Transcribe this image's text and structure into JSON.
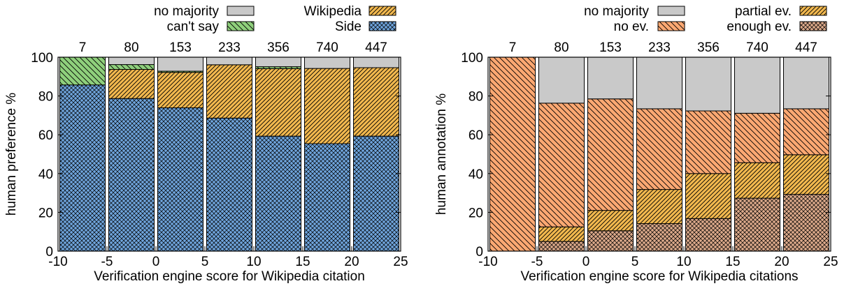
{
  "chart_data": [
    {
      "type": "bar",
      "stacked": true,
      "xlabel": "Verification engine score for Wikipedia citation",
      "ylabel": "human preference %",
      "xlim": [
        -10,
        25
      ],
      "ylim": [
        0,
        100
      ],
      "xticks": [
        "-10",
        "-5",
        "0",
        "5",
        "10",
        "15",
        "20",
        "25"
      ],
      "yticks": [
        "0",
        "20",
        "40",
        "60",
        "80",
        "100"
      ],
      "bins": [
        [
          -10,
          -5
        ],
        [
          -5,
          0
        ],
        [
          0,
          5
        ],
        [
          5,
          10
        ],
        [
          10,
          15
        ],
        [
          15,
          20
        ],
        [
          20,
          25
        ]
      ],
      "counts": [
        "7",
        "80",
        "153",
        "233",
        "356",
        "740",
        "447"
      ],
      "grid": false,
      "legend_position": "top",
      "series": [
        {
          "name": "Side",
          "color": "#6fa4dc",
          "pattern": "crosshatch",
          "values": [
            85.7,
            78.7,
            73.9,
            68.6,
            59.3,
            55.4,
            59.3
          ]
        },
        {
          "name": "Wikipedia",
          "color": "#f2b84e",
          "pattern": "hatch",
          "values": [
            0,
            15.0,
            18.3,
            27.5,
            34.8,
            38.8,
            35.3
          ]
        },
        {
          "name": "can't say",
          "color": "#8fd07c",
          "pattern": "hatch-reverse",
          "values": [
            14.3,
            2.5,
            0.6,
            0.0,
            1.0,
            0.0,
            0.0
          ]
        },
        {
          "name": "no majority",
          "color": "#c9c9c9",
          "pattern": "solid",
          "values": [
            0,
            3.8,
            7.2,
            3.9,
            4.9,
            5.8,
            5.4
          ]
        }
      ],
      "legend": [
        {
          "name": "no majority",
          "color": "#c9c9c9",
          "pattern": "solid"
        },
        {
          "name": "can't say",
          "color": "#8fd07c",
          "pattern": "hatch-reverse"
        },
        {
          "name": "Wikipedia",
          "color": "#f2b84e",
          "pattern": "hatch"
        },
        {
          "name": "Side",
          "color": "#6fa4dc",
          "pattern": "crosshatch"
        }
      ]
    },
    {
      "type": "bar",
      "stacked": true,
      "xlabel": "Verification engine score for Wikipedia citations",
      "ylabel": "human annotation %",
      "xlim": [
        -10,
        25
      ],
      "ylim": [
        0,
        100
      ],
      "xticks": [
        "-10",
        "-5",
        "0",
        "5",
        "10",
        "15",
        "20",
        "25"
      ],
      "yticks": [
        "0",
        "20",
        "40",
        "60",
        "80",
        "100"
      ],
      "bins": [
        [
          -10,
          -5
        ],
        [
          -5,
          0
        ],
        [
          0,
          5
        ],
        [
          5,
          10
        ],
        [
          10,
          15
        ],
        [
          15,
          20
        ],
        [
          20,
          25
        ]
      ],
      "counts": [
        "7",
        "80",
        "153",
        "233",
        "356",
        "740",
        "447"
      ],
      "grid": false,
      "legend_position": "top",
      "series": [
        {
          "name": "enough ev.",
          "color": "#dba98a",
          "pattern": "crosshatch",
          "values": [
            0,
            5.0,
            10.5,
            14.2,
            16.8,
            27.3,
            29.3
          ]
        },
        {
          "name": "partial ev.",
          "color": "#f2b84e",
          "pattern": "hatch",
          "values": [
            0,
            7.5,
            10.5,
            17.6,
            23.2,
            18.3,
            20.4
          ]
        },
        {
          "name": "no ev.",
          "color": "#fca872",
          "pattern": "hatch-reverse",
          "values": [
            100,
            63.8,
            57.5,
            41.6,
            32.3,
            25.5,
            23.7
          ]
        },
        {
          "name": "no majority",
          "color": "#c9c9c9",
          "pattern": "solid",
          "values": [
            0,
            23.7,
            21.5,
            26.6,
            27.7,
            28.9,
            26.6
          ]
        }
      ],
      "legend": [
        {
          "name": "no majority",
          "color": "#c9c9c9",
          "pattern": "solid"
        },
        {
          "name": "no ev.",
          "color": "#fca872",
          "pattern": "hatch-reverse"
        },
        {
          "name": "partial ev.",
          "color": "#f2b84e",
          "pattern": "hatch"
        },
        {
          "name": "enough ev.",
          "color": "#dba98a",
          "pattern": "crosshatch"
        }
      ]
    }
  ]
}
